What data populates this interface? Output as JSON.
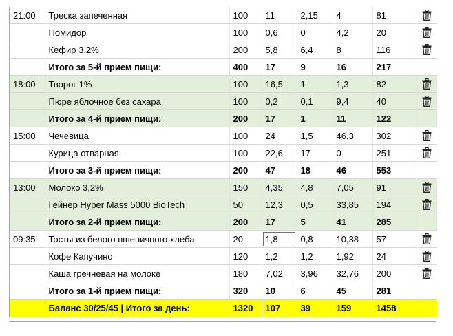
{
  "meals": [
    {
      "time": "21:00",
      "shade": "white",
      "items": [
        {
          "name": "Треска запеченная",
          "weight": "100",
          "protein": "11",
          "fat": "2,15",
          "carbs": "4",
          "kcal": "81"
        },
        {
          "name": "Помидор",
          "weight": "100",
          "protein": "0,6",
          "fat": "0",
          "carbs": "4,2",
          "kcal": "20"
        },
        {
          "name": "Кефир 3,2%",
          "weight": "200",
          "protein": "5,8",
          "fat": "6,4",
          "carbs": "8",
          "kcal": "116"
        }
      ],
      "total": {
        "label": "Итого за 5-й прием пищи:",
        "weight": "400",
        "protein": "17",
        "fat": "9",
        "carbs": "16",
        "kcal": "217"
      }
    },
    {
      "time": "18:00",
      "shade": "green",
      "items": [
        {
          "name": "Творог 1%",
          "weight": "100",
          "protein": "16,5",
          "fat": "1",
          "carbs": "1,3",
          "kcal": "82"
        },
        {
          "name": "Пюре яблочное без сахара",
          "weight": "100",
          "protein": "0,2",
          "fat": "0,1",
          "carbs": "9,4",
          "kcal": "40"
        }
      ],
      "total": {
        "label": "Итого за 4-й прием пищи:",
        "weight": "200",
        "protein": "17",
        "fat": "1",
        "carbs": "11",
        "kcal": "122"
      }
    },
    {
      "time": "15:00",
      "shade": "white",
      "items": [
        {
          "name": "Чечевица",
          "weight": "100",
          "protein": "24",
          "fat": "1,5",
          "carbs": "46,3",
          "kcal": "302"
        },
        {
          "name": "Курица отварная",
          "weight": "100",
          "protein": "22,6",
          "fat": "17",
          "carbs": "0",
          "kcal": "251"
        }
      ],
      "total": {
        "label": "Итого за 3-й прием пищи:",
        "weight": "200",
        "protein": "47",
        "fat": "18",
        "carbs": "46",
        "kcal": "553"
      }
    },
    {
      "time": "13:00",
      "shade": "green",
      "items": [
        {
          "name": "Молоко 3,2%",
          "weight": "150",
          "protein": "4,35",
          "fat": "4,8",
          "carbs": "7,05",
          "kcal": "91"
        },
        {
          "name": "Гейнер Hyper Mass 5000 BioTech",
          "weight": "50",
          "protein": "12,3",
          "fat": "0,5",
          "carbs": "33,85",
          "kcal": "194"
        }
      ],
      "total": {
        "label": "Итого за 2-й прием пищи:",
        "weight": "200",
        "protein": "17",
        "fat": "5",
        "carbs": "41",
        "kcal": "285"
      }
    },
    {
      "time": "09:35",
      "shade": "white",
      "items": [
        {
          "name": "Тосты из белого пшеничного хлеба",
          "weight": "20",
          "protein": "1,8",
          "fat": "0,8",
          "carbs": "10,38",
          "kcal": "57",
          "editing": "protein"
        },
        {
          "name": "Кофе Капучино",
          "weight": "120",
          "protein": "1,2",
          "fat": "1,2",
          "carbs": "1,92",
          "kcal": "24"
        },
        {
          "name": "Каша гречневая на молоке",
          "weight": "180",
          "protein": "7,02",
          "fat": "3,96",
          "carbs": "32,76",
          "kcal": "200"
        }
      ],
      "total": {
        "label": "Итого за 1-й прием пищи:",
        "weight": "320",
        "protein": "10",
        "fat": "6",
        "carbs": "45",
        "kcal": "281"
      }
    }
  ],
  "day_total": {
    "label": "Баланс 30/25/45  |  Итого за день:",
    "weight": "1320",
    "protein": "107",
    "fat": "39",
    "carbs": "159",
    "kcal": "1458"
  },
  "colors": {
    "green_row": "#e3eedb",
    "grand_row": "#ffff00",
    "trash": "#222222"
  },
  "icons": {
    "delete": "trash-icon"
  }
}
